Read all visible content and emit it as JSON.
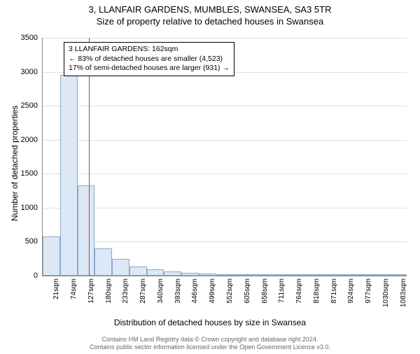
{
  "chart": {
    "type": "histogram",
    "title_line1": "3, LLANFAIR GARDENS, MUMBLES, SWANSEA, SA3 5TR",
    "title_line2": "Size of property relative to detached houses in Swansea",
    "ylabel": "Number of detached properties",
    "xlabel": "Distribution of detached houses by size in Swansea",
    "ylim": [
      0,
      3500
    ],
    "ytick_step": 500,
    "yticks": [
      0,
      500,
      1000,
      1500,
      2000,
      2500,
      3000,
      3500
    ],
    "xticks": [
      "21sqm",
      "74sqm",
      "127sqm",
      "180sqm",
      "233sqm",
      "287sqm",
      "340sqm",
      "393sqm",
      "446sqm",
      "499sqm",
      "552sqm",
      "605sqm",
      "658sqm",
      "711sqm",
      "764sqm",
      "818sqm",
      "871sqm",
      "924sqm",
      "977sqm",
      "1030sqm",
      "1083sqm"
    ],
    "bars": [
      580,
      2950,
      1330,
      400,
      250,
      130,
      90,
      60,
      45,
      35,
      25,
      20,
      15,
      12,
      10,
      8,
      6,
      5,
      4,
      3,
      2
    ],
    "bar_color": "#dce8f6",
    "bar_border_color": "#8aa8cc",
    "grid_color": "#e0e0e0",
    "background_color": "#ffffff",
    "marker_position_index": 2.65,
    "marker_color": "#cc3333",
    "annotation": {
      "line1": "3 LLANFAIR GARDENS: 162sqm",
      "line2": "← 83% of detached houses are smaller (4,523)",
      "line3": "17% of semi-detached houses are larger (931) →"
    },
    "footer_line1": "Contains HM Land Registry data © Crown copyright and database right 2024.",
    "footer_line2": "Contains public sector information licensed under the Open Government Licence v3.0."
  }
}
